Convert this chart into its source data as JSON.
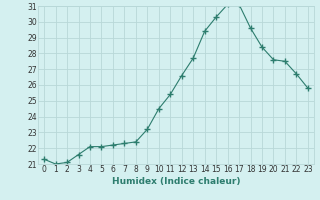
{
  "x": [
    0,
    1,
    2,
    3,
    4,
    5,
    6,
    7,
    8,
    9,
    10,
    11,
    12,
    13,
    14,
    15,
    16,
    17,
    18,
    19,
    20,
    21,
    22,
    23
  ],
  "y": [
    21.3,
    21.0,
    21.1,
    21.6,
    22.1,
    22.1,
    22.2,
    22.3,
    22.4,
    23.2,
    24.5,
    25.4,
    26.6,
    27.7,
    29.4,
    30.3,
    31.1,
    31.1,
    29.6,
    28.4,
    27.6,
    27.5,
    26.7,
    25.8
  ],
  "x_labels": [
    "0",
    "1",
    "2",
    "3",
    "4",
    "5",
    "6",
    "7",
    "8",
    "9",
    "10",
    "11",
    "12",
    "13",
    "14",
    "15",
    "16",
    "17",
    "18",
    "19",
    "20",
    "21",
    "22",
    "23"
  ],
  "xlabel": "Humidex (Indice chaleur)",
  "ylim_min": 21,
  "ylim_max": 31,
  "yticks": [
    21,
    22,
    23,
    24,
    25,
    26,
    27,
    28,
    29,
    30,
    31
  ],
  "line_color": "#2d7d6e",
  "marker": "+",
  "marker_size": 4,
  "bg_color": "#d4f0f0",
  "grid_color": "#b8d8d8",
  "xlabel_color": "#2d7d6e",
  "tick_color": "#333333",
  "xlabel_fontsize": 6.5,
  "tick_fontsize": 5.5
}
